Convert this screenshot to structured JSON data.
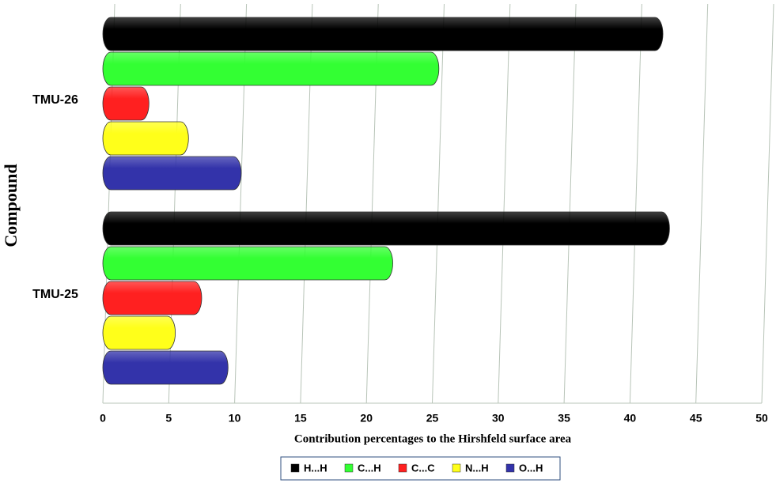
{
  "chart_data": {
    "type": "bar",
    "orientation": "horizontal",
    "x_label": "Contribution  percentages to the Hirshfeld  surface area",
    "y_label": "Compound",
    "categories": [
      "TMU-26",
      "TMU-25"
    ],
    "series": [
      {
        "name": "H...H",
        "color": "#000000",
        "values": [
          42.5,
          43
        ]
      },
      {
        "name": "C...H",
        "color": "#33ff33",
        "values": [
          25.5,
          22
        ]
      },
      {
        "name": "C...C",
        "color": "#ff2020",
        "values": [
          3.5,
          7.5
        ]
      },
      {
        "name": "N...H",
        "color": "#ffff1a",
        "values": [
          6.5,
          5.5
        ]
      },
      {
        "name": "O...H",
        "color": "#3333aa",
        "values": [
          10.5,
          9.5
        ]
      }
    ],
    "xlim": [
      0,
      50
    ],
    "xticks": [
      0,
      5,
      10,
      15,
      20,
      25,
      30,
      35,
      40,
      45,
      50
    ],
    "grid": true,
    "legend": "bottom"
  }
}
